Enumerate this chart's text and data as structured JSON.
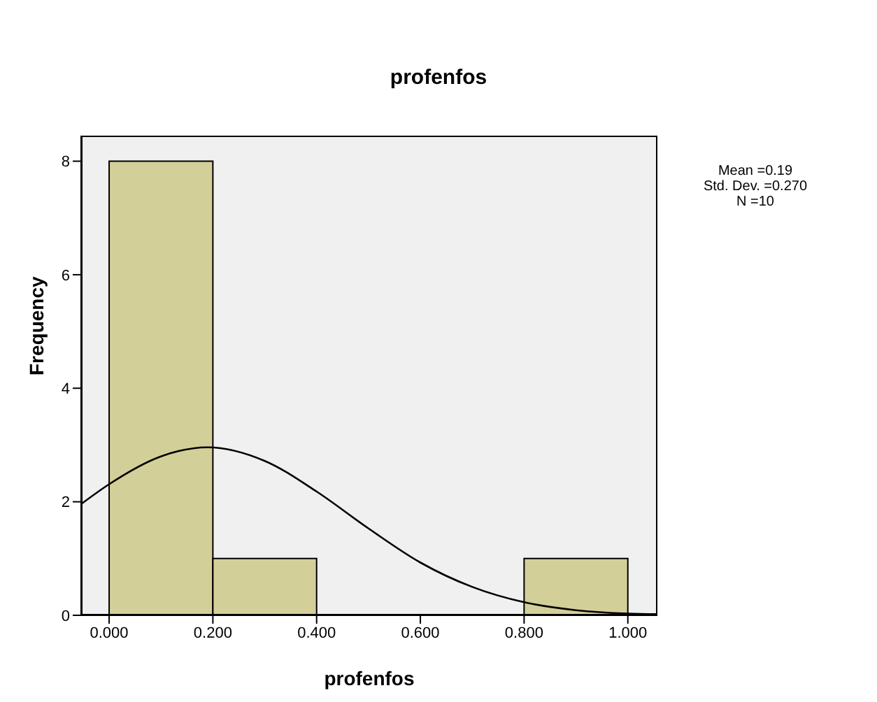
{
  "chart_data": {
    "type": "histogram",
    "title": "profenfos",
    "xlabel": "profenfos",
    "ylabel": "Frequency",
    "bins": [
      0,
      0.2,
      0.4,
      0.6,
      0.8,
      1.0
    ],
    "values": [
      8,
      1,
      0,
      0,
      1
    ],
    "color": "#d3cf98",
    "series": [
      {
        "type": "line",
        "color": "#000000",
        "x": [
          -0.054,
          0,
          0.1,
          0.19,
          0.3,
          0.4,
          0.5,
          0.6,
          0.7,
          0.8,
          0.9,
          1.0,
          1.057
        ],
        "values": [
          1.96,
          2.31,
          2.8,
          2.96,
          2.72,
          2.18,
          1.53,
          0.93,
          0.5,
          0.23,
          0.09,
          0.03,
          0.02
        ]
      }
    ],
    "xlim": [
      -0.054,
      1.057
    ],
    "ylim": [
      0,
      8.45
    ],
    "xticks": [
      {
        "value": 0,
        "label": "0.000"
      },
      {
        "value": 0.2,
        "label": "0.200"
      },
      {
        "value": 0.4,
        "label": "0.400"
      },
      {
        "value": 0.6,
        "label": "0.600"
      },
      {
        "value": 0.8,
        "label": "0.800"
      },
      {
        "value": 1,
        "label": "1.000"
      }
    ],
    "yticks": [
      0,
      2,
      4,
      6,
      8
    ],
    "grid": false,
    "marker": "none",
    "annotations": [
      "Mean =0.19",
      "Std. Dev. =0.270",
      "N =10"
    ]
  }
}
